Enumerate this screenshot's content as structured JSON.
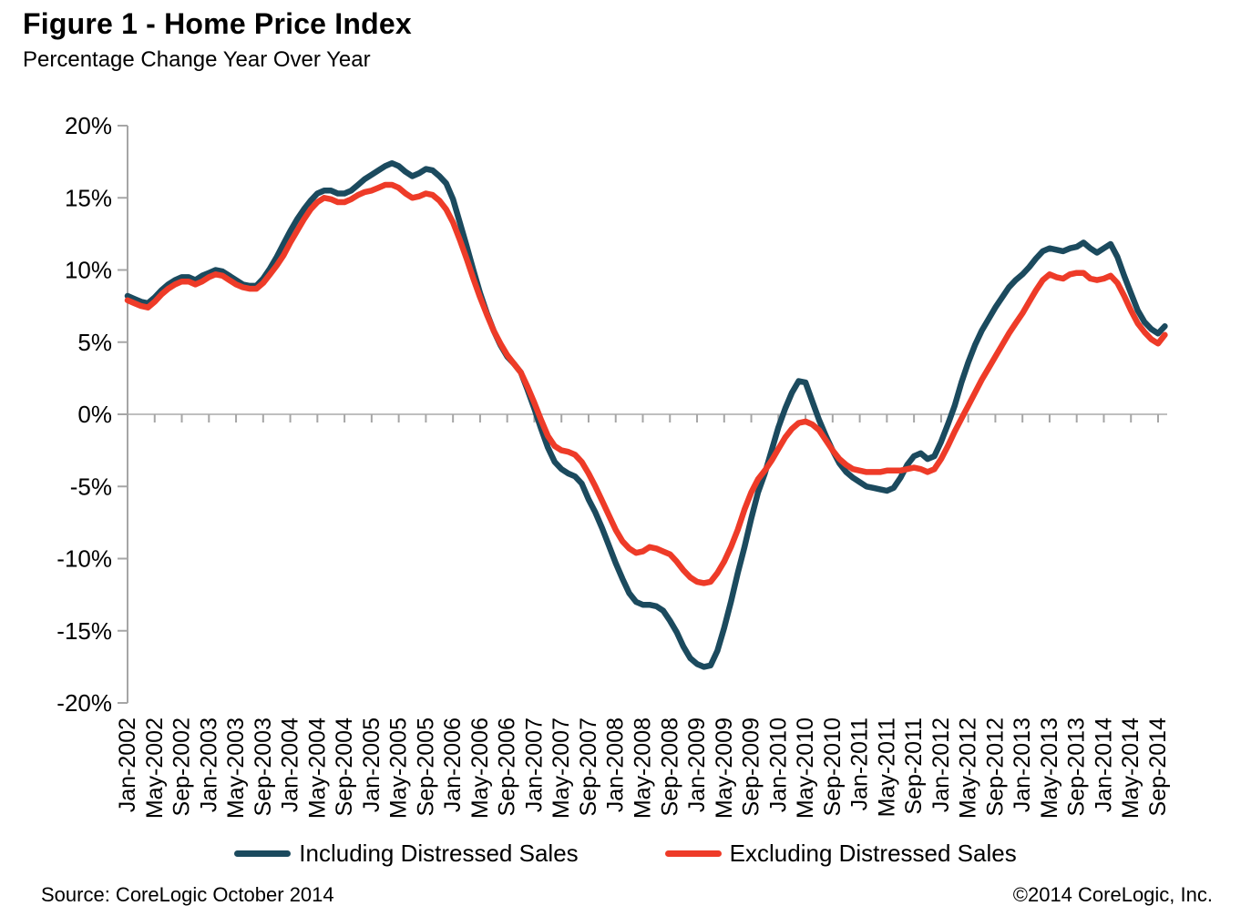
{
  "page": {
    "title": "Figure 1 - Home Price Index",
    "subtitle": "Percentage Change Year Over Year"
  },
  "footer": {
    "source": "Source: CoreLogic  October 2014",
    "copyright": "©2014 CoreLogic, Inc."
  },
  "legend": {
    "items": [
      {
        "label": "Including Distressed Sales",
        "color": "#1b4a5e"
      },
      {
        "label": "Excluding Distressed Sales",
        "color": "#ee3b28"
      }
    ]
  },
  "chart_data": {
    "type": "line",
    "title": "Figure 1 - Home Price Index",
    "subtitle": "Percentage Change Year Over Year",
    "ylabel": "Percentage change year over year (%)",
    "ylim": [
      -20,
      20
    ],
    "y_tick_values": [
      20,
      15,
      10,
      5,
      0,
      -5,
      -10,
      -15,
      -20
    ],
    "y_tick_labels": [
      "20%",
      "15%",
      "10%",
      "5%",
      "0%",
      "-5%",
      "-10%",
      "-15%",
      "-20%"
    ],
    "grid": "zero-line-only",
    "legend_position": "bottom",
    "x_unit": "month",
    "x_start": "Jan-2002",
    "x_end": "Oct-2014",
    "x_tick_every_months": 4,
    "x_tick_labels": [
      "Jan-2002",
      "May-2002",
      "Sep-2002",
      "Jan-2003",
      "May-2003",
      "Sep-2003",
      "Jan-2004",
      "May-2004",
      "Sep-2004",
      "Jan-2005",
      "May-2005",
      "Sep-2005",
      "Jan-2006",
      "May-2006",
      "Sep-2006",
      "Jan-2007",
      "May-2007",
      "Sep-2007",
      "Jan-2008",
      "May-2008",
      "Sep-2008",
      "Jan-2009",
      "May-2009",
      "Sep-2009",
      "Jan-2010",
      "May-2010",
      "Sep-2010",
      "Jan-2011",
      "May-2011",
      "Sep-2011",
      "Jan-2012",
      "May-2012",
      "Sep-2012",
      "Jan-2013",
      "May-2013",
      "Sep-2013",
      "Jan-2014",
      "May-2014",
      "Sep-2014"
    ],
    "series": [
      {
        "name": "Including Distressed Sales",
        "color": "#1b4a5e",
        "values": [
          8.2,
          8.0,
          7.8,
          7.7,
          8.1,
          8.6,
          9.0,
          9.3,
          9.5,
          9.5,
          9.3,
          9.6,
          9.8,
          10.0,
          9.9,
          9.6,
          9.3,
          9.0,
          8.9,
          8.9,
          9.4,
          10.1,
          10.9,
          11.8,
          12.7,
          13.5,
          14.2,
          14.8,
          15.3,
          15.5,
          15.5,
          15.3,
          15.3,
          15.5,
          15.9,
          16.3,
          16.6,
          16.9,
          17.2,
          17.4,
          17.2,
          16.8,
          16.5,
          16.7,
          17.0,
          16.9,
          16.5,
          16.0,
          14.9,
          13.3,
          11.7,
          10.0,
          8.4,
          7.0,
          5.8,
          4.8,
          4.0,
          3.5,
          2.9,
          1.7,
          0.4,
          -1.0,
          -2.3,
          -3.3,
          -3.8,
          -4.1,
          -4.3,
          -4.8,
          -5.9,
          -6.8,
          -7.9,
          -9.1,
          -10.3,
          -11.4,
          -12.4,
          -13.0,
          -13.2,
          -13.2,
          -13.3,
          -13.6,
          -14.3,
          -15.1,
          -16.1,
          -16.9,
          -17.3,
          -17.5,
          -17.4,
          -16.4,
          -14.8,
          -13.0,
          -11.0,
          -9.2,
          -7.2,
          -5.4,
          -4.1,
          -2.5,
          -0.9,
          0.4,
          1.5,
          2.3,
          2.2,
          0.9,
          -0.4,
          -1.5,
          -2.5,
          -3.4,
          -4.0,
          -4.4,
          -4.7,
          -5.0,
          -5.1,
          -5.2,
          -5.3,
          -5.1,
          -4.4,
          -3.5,
          -2.9,
          -2.7,
          -3.1,
          -2.9,
          -1.9,
          -0.7,
          0.6,
          2.2,
          3.6,
          4.8,
          5.8,
          6.6,
          7.4,
          8.1,
          8.8,
          9.3,
          9.7,
          10.2,
          10.8,
          11.3,
          11.5,
          11.4,
          11.3,
          11.5,
          11.6,
          11.9,
          11.5,
          11.2,
          11.5,
          11.8,
          10.9,
          9.6,
          8.4,
          7.2,
          6.4,
          5.9,
          5.6,
          6.1
        ]
      },
      {
        "name": "Excluding Distressed Sales",
        "color": "#ee3b28",
        "values": [
          7.9,
          7.7,
          7.5,
          7.4,
          7.8,
          8.3,
          8.7,
          9.0,
          9.2,
          9.2,
          9.0,
          9.2,
          9.5,
          9.7,
          9.6,
          9.3,
          9.0,
          8.8,
          8.7,
          8.7,
          9.1,
          9.7,
          10.3,
          11.0,
          11.9,
          12.7,
          13.5,
          14.2,
          14.7,
          15.0,
          14.9,
          14.7,
          14.7,
          14.9,
          15.2,
          15.4,
          15.5,
          15.7,
          15.9,
          15.9,
          15.7,
          15.3,
          15.0,
          15.1,
          15.3,
          15.2,
          14.8,
          14.2,
          13.3,
          12.1,
          10.8,
          9.4,
          8.1,
          6.9,
          5.8,
          4.9,
          4.1,
          3.5,
          2.9,
          1.9,
          0.8,
          -0.4,
          -1.5,
          -2.2,
          -2.5,
          -2.6,
          -2.8,
          -3.3,
          -4.1,
          -5.0,
          -6.0,
          -7.0,
          -8.0,
          -8.8,
          -9.3,
          -9.6,
          -9.5,
          -9.2,
          -9.3,
          -9.5,
          -9.7,
          -10.2,
          -10.8,
          -11.3,
          -11.6,
          -11.7,
          -11.6,
          -11.0,
          -10.2,
          -9.2,
          -8.0,
          -6.6,
          -5.4,
          -4.5,
          -3.9,
          -3.2,
          -2.4,
          -1.6,
          -1.0,
          -0.6,
          -0.5,
          -0.7,
          -1.1,
          -1.8,
          -2.5,
          -3.1,
          -3.5,
          -3.8,
          -3.9,
          -4.0,
          -4.0,
          -4.0,
          -3.9,
          -3.9,
          -3.9,
          -3.8,
          -3.7,
          -3.8,
          -4.0,
          -3.8,
          -3.1,
          -2.2,
          -1.2,
          -0.3,
          0.6,
          1.5,
          2.4,
          3.2,
          4.0,
          4.8,
          5.6,
          6.3,
          7.0,
          7.8,
          8.6,
          9.3,
          9.7,
          9.5,
          9.4,
          9.7,
          9.8,
          9.8,
          9.4,
          9.3,
          9.4,
          9.6,
          9.1,
          8.2,
          7.2,
          6.3,
          5.7,
          5.2,
          4.9,
          5.5
        ]
      }
    ],
    "axis_color": "#a6a6a6",
    "zero_line_color": "#bfbfbf"
  }
}
